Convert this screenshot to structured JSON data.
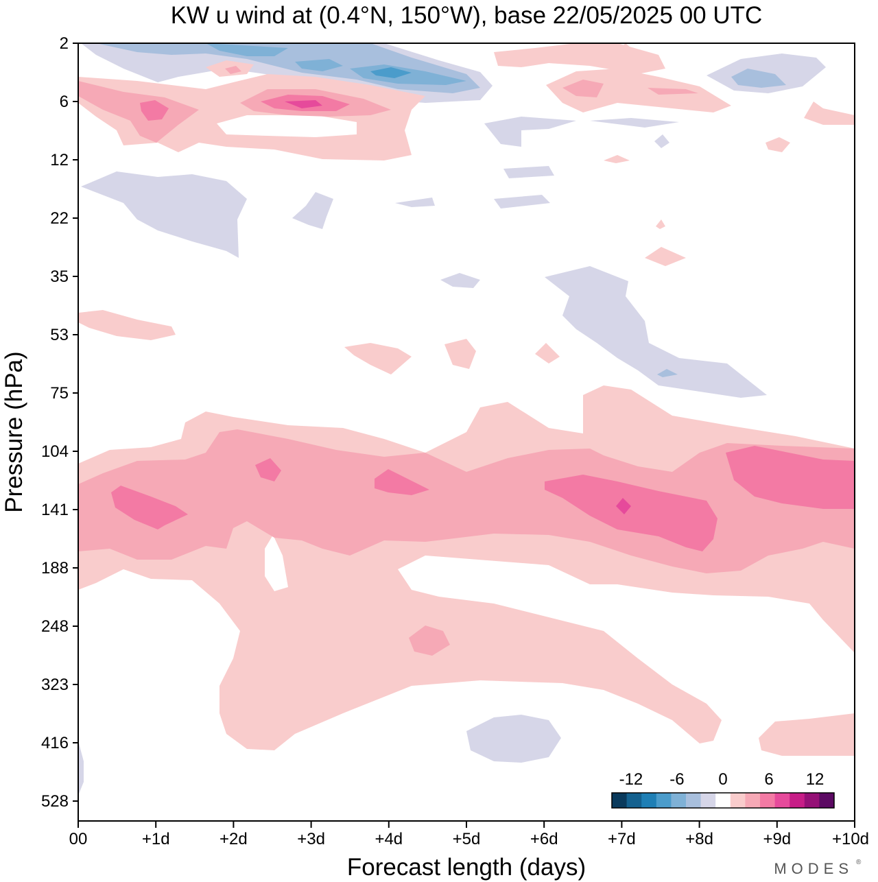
{
  "chart_data": {
    "type": "heatmap",
    "subtype": "filled-contour",
    "title": "KW u wind at (0.4°N, 150°W),  base 22/05/2025  00 UTC",
    "xlabel": "Forecast length (days)",
    "ylabel": "Pressure (hPa)",
    "x_ticks": [
      "00",
      "+1d",
      "+2d",
      "+3d",
      "+4d",
      "+5d",
      "+6d",
      "+7d",
      "+8d",
      "+9d",
      "+10d"
    ],
    "y_ticks": [
      "2",
      "6",
      "12",
      "22",
      "35",
      "53",
      "75",
      "104",
      "141",
      "188",
      "248",
      "323",
      "416",
      "528"
    ],
    "x_range_days": [
      0,
      10
    ],
    "y_range_hpa": [
      2,
      580
    ],
    "y_scale": "log-like (inverted)",
    "colorbar": {
      "labels": [
        "-12",
        "-6",
        "0",
        "6",
        "12"
      ],
      "levels": [
        -16,
        -14,
        -12,
        -10,
        -8,
        -6,
        -4,
        -2,
        2,
        4,
        6,
        8,
        10,
        12,
        14,
        16
      ],
      "colors": [
        "#0a3a5c",
        "#14618f",
        "#1f7fb5",
        "#4b9ccb",
        "#7fb1d6",
        "#a8bfdd",
        "#d6d6e8",
        "#ffffff",
        "#f9cccc",
        "#f6a9b6",
        "#f37aa4",
        "#e64a9b",
        "#c71d87",
        "#951076",
        "#5c0a63"
      ],
      "placement": "bottom-right"
    },
    "features": [
      {
        "name": "westerly band",
        "x_days": [
          0,
          10
        ],
        "y_hpa": [
          90,
          220
        ],
        "max_value": 12
      },
      {
        "name": "easterly patch",
        "x_days": [
          0.5,
          5.5
        ],
        "y_hpa": [
          2,
          5
        ],
        "min_value": -8
      }
    ],
    "brand": "MODES"
  }
}
